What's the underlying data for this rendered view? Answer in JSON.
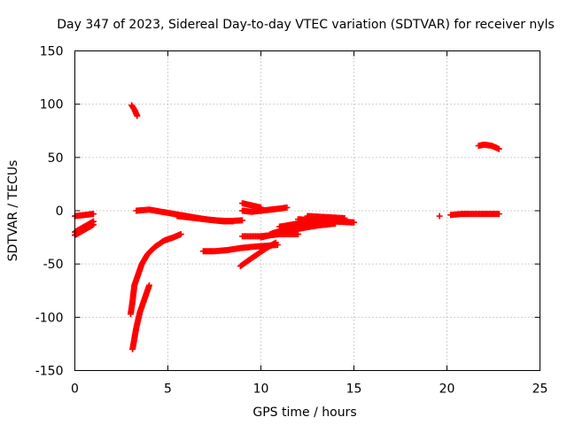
{
  "chart_data": {
    "type": "scatter",
    "title": "Day 347 of 2023, Sidereal Day-to-day VTEC variation (SDTVAR) for receiver nyls",
    "xlabel": "GPS time / hours",
    "ylabel": "SDTVAR / TECUs",
    "xlim": [
      0,
      25
    ],
    "ylim": [
      -150,
      150
    ],
    "xticks": [
      0,
      5,
      10,
      15,
      20,
      25
    ],
    "yticks": [
      -150,
      -100,
      -50,
      0,
      50,
      100,
      150
    ],
    "grid": true,
    "marker": "plus",
    "series_color": "#ff0000",
    "segments": [
      {
        "x": [
          0.0,
          0.5,
          1.0
        ],
        "y": [
          -5,
          -4,
          -3
        ]
      },
      {
        "x": [
          0.0,
          0.5,
          1.0
        ],
        "y": [
          -23,
          -18,
          -13
        ]
      },
      {
        "x": [
          0.0,
          0.5,
          1.0
        ],
        "y": [
          -20,
          -15,
          -10
        ]
      },
      {
        "x": [
          3.05,
          3.2,
          3.35
        ],
        "y": [
          99,
          95,
          89
        ]
      },
      {
        "x": [
          3.0,
          3.1,
          3.2,
          3.4,
          3.6,
          3.9,
          4.3,
          4.8,
          5.3,
          5.7
        ],
        "y": [
          -97,
          -85,
          -70,
          -60,
          -50,
          -41,
          -34,
          -28,
          -25,
          -22
        ]
      },
      {
        "x": [
          3.1,
          3.3,
          3.5,
          3.8,
          4.0
        ],
        "y": [
          -130,
          -110,
          -95,
          -80,
          -70
        ]
      },
      {
        "x": [
          3.3,
          4.0,
          5.0,
          6.0,
          7.0,
          8.0,
          9.0
        ],
        "y": [
          0,
          1,
          -2,
          -5,
          -8,
          -10,
          -9
        ]
      },
      {
        "x": [
          5.5,
          6.5,
          7.5,
          8.5
        ],
        "y": [
          -5,
          -7,
          -9,
          -10
        ]
      },
      {
        "x": [
          6.9,
          7.5,
          8.2,
          8.9,
          9.5,
          10.2,
          10.9
        ],
        "y": [
          -38,
          -38,
          -37,
          -35,
          -34,
          -33,
          -32
        ]
      },
      {
        "x": [
          8.9,
          9.3,
          9.8,
          10.3,
          10.8
        ],
        "y": [
          -52,
          -47,
          -41,
          -35,
          -30
        ]
      },
      {
        "x": [
          9.0,
          9.5,
          10.0,
          10.5,
          11.0,
          11.5,
          12.0
        ],
        "y": [
          -24,
          -24,
          -24,
          -23,
          -22,
          -22,
          -22
        ]
      },
      {
        "x": [
          9.0,
          9.5,
          10.0
        ],
        "y": [
          7,
          5,
          3
        ]
      },
      {
        "x": [
          9.0,
          9.5,
          10.0,
          10.5,
          11.0,
          11.4
        ],
        "y": [
          0,
          -1,
          0,
          1,
          2,
          3
        ]
      },
      {
        "x": [
          10.0,
          11.0,
          12.0,
          13.0,
          14.0
        ],
        "y": [
          -25,
          -21,
          -17,
          -14,
          -12
        ]
      },
      {
        "x": [
          10.5,
          11.5,
          12.5,
          13.5
        ],
        "y": [
          -22,
          -16,
          -12,
          -9
        ]
      },
      {
        "x": [
          11.0,
          12.0,
          13.0,
          14.0,
          15.0
        ],
        "y": [
          -15,
          -12,
          -10,
          -10,
          -11
        ]
      },
      {
        "x": [
          12.0,
          13.0,
          14.0,
          15.0
        ],
        "y": [
          -8,
          -9,
          -10,
          -11
        ]
      },
      {
        "x": [
          12.5,
          13.5,
          14.5
        ],
        "y": [
          -5,
          -6,
          -7
        ]
      },
      {
        "x": [
          19.6
        ],
        "y": [
          -5
        ]
      },
      {
        "x": [
          20.2,
          20.8,
          21.5,
          22.2,
          22.8
        ],
        "y": [
          -4,
          -3,
          -3,
          -3,
          -3
        ]
      },
      {
        "x": [
          21.7,
          22.0,
          22.4,
          22.8
        ],
        "y": [
          61,
          62,
          61,
          58
        ]
      }
    ]
  }
}
